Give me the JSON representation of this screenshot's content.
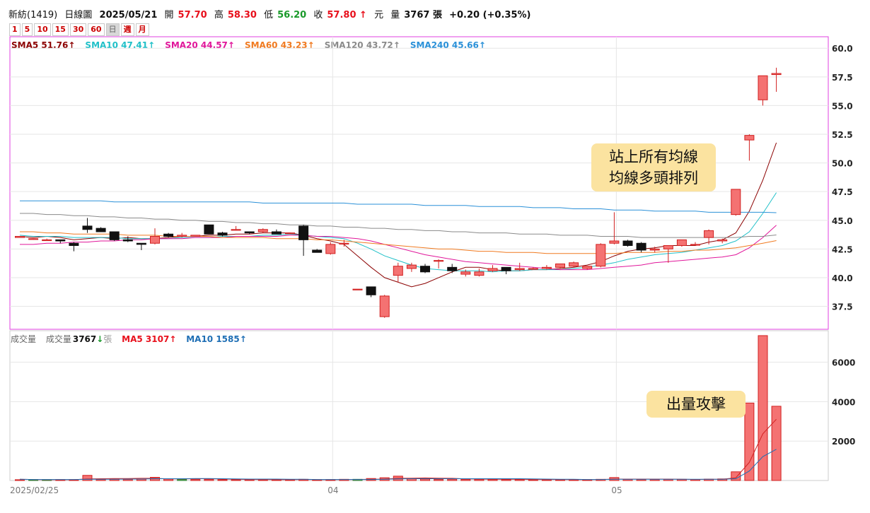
{
  "header": {
    "stock": "新紡(1419)",
    "chart_kind": "日線圖",
    "date": "2025/05/21",
    "open_label": "開",
    "open": "57.70",
    "high_label": "高",
    "high": "58.30",
    "low_label": "低",
    "low": "56.20",
    "close_label": "收",
    "close": "57.80 ↑",
    "currency": "元",
    "volume_label": "量",
    "volume": "3767 張",
    "change": "+0.20 (+0.35%)"
  },
  "periods": [
    "1",
    "5",
    "10",
    "15",
    "30",
    "60",
    "日",
    "週",
    "月"
  ],
  "active_period": "日",
  "ma_legend": [
    {
      "text": "SMA5 51.76↑",
      "color": "#8b0000"
    },
    {
      "text": "SMA10 47.41↑",
      "color": "#20c0c8"
    },
    {
      "text": "SMA20 44.57↑",
      "color": "#e0169a"
    },
    {
      "text": "SMA60 43.23↑",
      "color": "#f07a20"
    },
    {
      "text": "SMA120 43.72↑",
      "color": "#8a8a8a"
    },
    {
      "text": "SMA240 45.66↑",
      "color": "#2a90d8"
    }
  ],
  "volume_legend": {
    "title": "成交量",
    "label": "成交量",
    "value": "3767",
    "arrow": "↓",
    "unit": "張",
    "ma5": "MA5 3107↑",
    "ma10": "MA10 1585↑"
  },
  "annotations": {
    "ma_callout_line1": "站上所有均線",
    "ma_callout_line2": "均線多頭排列",
    "volume_callout": "出量攻擊"
  },
  "chart_data": {
    "type": "candlestick",
    "price_axis": {
      "ticks": [
        37.5,
        40.0,
        42.5,
        45.0,
        47.5,
        50.0,
        52.5,
        55.0,
        57.5,
        60.0
      ],
      "ylim": [
        35.5,
        61.0
      ]
    },
    "volume_axis": {
      "ticks": [
        2000,
        4000,
        6000
      ],
      "ylim": [
        0,
        7600
      ]
    },
    "x_labels": [
      "2025/02/25",
      "04",
      "05"
    ],
    "candles": [
      [
        43.5,
        43.6,
        43.5,
        43.6
      ],
      [
        43.4,
        43.4,
        43.3,
        43.4
      ],
      [
        43.3,
        43.4,
        43.2,
        43.3
      ],
      [
        43.3,
        43.3,
        43.0,
        43.2
      ],
      [
        43.0,
        43.1,
        42.3,
        42.8
      ],
      [
        44.5,
        45.2,
        43.9,
        44.2
      ],
      [
        44.3,
        44.4,
        44.0,
        44.0
      ],
      [
        44.0,
        44.0,
        43.2,
        43.3
      ],
      [
        43.3,
        43.6,
        43.1,
        43.2
      ],
      [
        43.0,
        43.0,
        42.4,
        42.9
      ],
      [
        43.0,
        44.3,
        42.9,
        43.6
      ],
      [
        43.8,
        43.9,
        43.5,
        43.6
      ],
      [
        43.6,
        43.9,
        43.5,
        43.7
      ],
      [
        43.6,
        43.7,
        43.6,
        43.7
      ],
      [
        44.6,
        44.6,
        43.8,
        43.8
      ],
      [
        43.9,
        44.0,
        43.6,
        43.7
      ],
      [
        44.2,
        44.5,
        44.1,
        44.2
      ],
      [
        44.0,
        44.0,
        43.8,
        43.9
      ],
      [
        44.0,
        44.3,
        43.9,
        44.2
      ],
      [
        44.0,
        44.2,
        43.8,
        43.8
      ],
      [
        43.9,
        43.9,
        43.9,
        43.9
      ],
      [
        44.5,
        44.6,
        41.9,
        43.3
      ],
      [
        42.4,
        42.5,
        42.2,
        42.2
      ],
      [
        42.1,
        43.1,
        42.0,
        42.9
      ],
      [
        43.0,
        43.3,
        42.7,
        43.0
      ],
      [
        39.0,
        39.0,
        39.0,
        39.0
      ],
      [
        39.2,
        39.2,
        38.3,
        38.5
      ],
      [
        36.6,
        38.5,
        36.5,
        38.4
      ],
      [
        40.2,
        41.3,
        39.6,
        41.0
      ],
      [
        40.8,
        41.3,
        40.5,
        41.1
      ],
      [
        41.0,
        41.2,
        40.4,
        40.5
      ],
      [
        41.5,
        41.6,
        40.8,
        41.5
      ],
      [
        40.9,
        41.2,
        40.4,
        40.6
      ],
      [
        40.3,
        40.7,
        40.1,
        40.5
      ],
      [
        40.2,
        40.8,
        40.1,
        40.5
      ],
      [
        40.6,
        41.1,
        40.5,
        40.8
      ],
      [
        40.9,
        40.9,
        40.3,
        40.6
      ],
      [
        40.7,
        41.3,
        40.6,
        40.8
      ],
      [
        40.8,
        40.9,
        40.7,
        40.8
      ],
      [
        40.8,
        41.1,
        40.7,
        40.9
      ],
      [
        40.9,
        41.2,
        40.8,
        41.2
      ],
      [
        41.0,
        41.4,
        40.9,
        41.3
      ],
      [
        40.8,
        41.0,
        40.7,
        41.0
      ],
      [
        41.0,
        43.0,
        40.9,
        42.9
      ],
      [
        43.0,
        45.7,
        42.9,
        43.2
      ],
      [
        43.2,
        43.3,
        42.7,
        42.8
      ],
      [
        43.0,
        43.1,
        42.2,
        42.4
      ],
      [
        42.4,
        42.7,
        42.2,
        42.5
      ],
      [
        42.5,
        42.8,
        41.3,
        42.8
      ],
      [
        42.8,
        43.3,
        42.7,
        43.3
      ],
      [
        42.9,
        43.1,
        42.8,
        42.9
      ],
      [
        43.5,
        44.2,
        42.9,
        44.1
      ],
      [
        43.2,
        43.4,
        43.0,
        43.3
      ],
      [
        45.5,
        47.7,
        45.4,
        47.7
      ],
      [
        52.0,
        52.5,
        50.2,
        52.4
      ],
      [
        55.5,
        57.6,
        55.0,
        57.6
      ],
      [
        57.7,
        58.3,
        56.2,
        57.8
      ]
    ],
    "volumes": [
      40,
      30,
      30,
      40,
      40,
      260,
      60,
      80,
      60,
      70,
      160,
      80,
      60,
      50,
      60,
      40,
      40,
      40,
      40,
      40,
      40,
      60,
      30,
      40,
      60,
      60,
      100,
      140,
      220,
      90,
      80,
      50,
      70,
      60,
      60,
      60,
      50,
      50,
      40,
      40,
      40,
      50,
      40,
      60,
      150,
      60,
      50,
      50,
      60,
      60,
      50,
      70,
      80,
      440,
      3930,
      7350,
      3767
    ],
    "volume_up": [
      1,
      0,
      0,
      1,
      1,
      1,
      1,
      1,
      1,
      1,
      1,
      1,
      0,
      1,
      1,
      1,
      1,
      1,
      1,
      1,
      1,
      1,
      1,
      1,
      1,
      0,
      1,
      1,
      1,
      1,
      1,
      1,
      1,
      1,
      1,
      1,
      1,
      1,
      1,
      1,
      1,
      1,
      1,
      1,
      1,
      1,
      1,
      1,
      1,
      1,
      1,
      1,
      1,
      1,
      1,
      1,
      1
    ],
    "ma_lines": {
      "SMA5": [
        43.6,
        43.5,
        43.6,
        43.5,
        43.3,
        43.4,
        43.5,
        43.4,
        43.5,
        43.4,
        43.4,
        43.5,
        43.6,
        43.6,
        43.7,
        43.7,
        43.8,
        43.8,
        43.9,
        43.9,
        43.9,
        43.7,
        43.4,
        43.2,
        42.9,
        41.9,
        40.9,
        40.0,
        39.6,
        39.2,
        39.5,
        40.0,
        40.5,
        40.9,
        40.9,
        40.7,
        40.6,
        40.6,
        40.7,
        40.7,
        40.8,
        40.9,
        41.1,
        41.4,
        41.9,
        42.3,
        42.5,
        42.6,
        42.8,
        42.8,
        42.8,
        43.1,
        43.3,
        43.9,
        45.8,
        48.5,
        51.76
      ],
      "SMA10": [
        43.7,
        43.6,
        43.6,
        43.6,
        43.5,
        43.5,
        43.5,
        43.5,
        43.4,
        43.4,
        43.4,
        43.4,
        43.5,
        43.5,
        43.5,
        43.6,
        43.6,
        43.6,
        43.7,
        43.7,
        43.8,
        43.7,
        43.6,
        43.5,
        43.4,
        43.0,
        42.5,
        41.9,
        41.5,
        41.1,
        40.8,
        40.7,
        40.6,
        40.6,
        40.6,
        40.5,
        40.6,
        40.6,
        40.7,
        40.7,
        40.7,
        40.8,
        40.9,
        41.1,
        41.3,
        41.6,
        41.8,
        42.0,
        42.1,
        42.2,
        42.4,
        42.6,
        42.8,
        43.2,
        44.0,
        45.6,
        47.41
      ],
      "SMA20": [
        42.9,
        42.9,
        43.0,
        43.0,
        43.1,
        43.1,
        43.2,
        43.2,
        43.3,
        43.3,
        43.4,
        43.4,
        43.4,
        43.5,
        43.5,
        43.5,
        43.6,
        43.6,
        43.6,
        43.6,
        43.7,
        43.7,
        43.6,
        43.6,
        43.5,
        43.4,
        43.2,
        42.9,
        42.6,
        42.3,
        42.0,
        41.8,
        41.6,
        41.4,
        41.3,
        41.2,
        41.1,
        41.0,
        40.9,
        40.8,
        40.7,
        40.7,
        40.7,
        40.8,
        40.9,
        41.0,
        41.1,
        41.3,
        41.4,
        41.5,
        41.6,
        41.7,
        41.8,
        42.0,
        42.6,
        43.5,
        44.57
      ],
      "SMA60": [
        44.0,
        44.0,
        43.9,
        43.9,
        43.8,
        43.8,
        43.8,
        43.8,
        43.7,
        43.7,
        43.7,
        43.6,
        43.6,
        43.6,
        43.6,
        43.5,
        43.5,
        43.5,
        43.5,
        43.4,
        43.4,
        43.4,
        43.3,
        43.3,
        43.2,
        43.1,
        43.0,
        42.9,
        42.8,
        42.7,
        42.6,
        42.5,
        42.5,
        42.4,
        42.3,
        42.3,
        42.2,
        42.2,
        42.2,
        42.1,
        42.1,
        42.1,
        42.1,
        42.1,
        42.1,
        42.2,
        42.2,
        42.2,
        42.3,
        42.3,
        42.4,
        42.4,
        42.5,
        42.6,
        42.8,
        43.0,
        43.23
      ],
      "SMA120": [
        45.6,
        45.6,
        45.5,
        45.5,
        45.4,
        45.4,
        45.3,
        45.3,
        45.2,
        45.2,
        45.1,
        45.1,
        45.0,
        45.0,
        44.9,
        44.9,
        44.8,
        44.8,
        44.7,
        44.7,
        44.6,
        44.6,
        44.5,
        44.5,
        44.4,
        44.4,
        44.3,
        44.3,
        44.2,
        44.2,
        44.1,
        44.1,
        44.0,
        44.0,
        43.9,
        43.9,
        43.9,
        43.8,
        43.8,
        43.8,
        43.7,
        43.7,
        43.7,
        43.6,
        43.6,
        43.6,
        43.5,
        43.5,
        43.5,
        43.5,
        43.5,
        43.5,
        43.5,
        43.5,
        43.6,
        43.6,
        43.72
      ],
      "SMA240": [
        46.7,
        46.7,
        46.7,
        46.7,
        46.7,
        46.7,
        46.7,
        46.6,
        46.6,
        46.6,
        46.6,
        46.6,
        46.6,
        46.6,
        46.6,
        46.6,
        46.6,
        46.6,
        46.5,
        46.5,
        46.5,
        46.5,
        46.5,
        46.5,
        46.5,
        46.4,
        46.4,
        46.4,
        46.4,
        46.4,
        46.3,
        46.3,
        46.3,
        46.3,
        46.2,
        46.2,
        46.2,
        46.2,
        46.1,
        46.1,
        46.1,
        46.0,
        46.0,
        46.0,
        45.9,
        45.9,
        45.9,
        45.8,
        45.8,
        45.8,
        45.8,
        45.7,
        45.7,
        45.7,
        45.7,
        45.7,
        45.66
      ]
    },
    "vol_ma": {
      "MA5": [
        60,
        50,
        40,
        40,
        40,
        80,
        90,
        100,
        100,
        110,
        110,
        80,
        80,
        90,
        90,
        70,
        60,
        50,
        50,
        40,
        40,
        50,
        40,
        40,
        50,
        50,
        60,
        70,
        110,
        120,
        130,
        120,
        110,
        80,
        70,
        60,
        60,
        60,
        50,
        50,
        50,
        40,
        40,
        50,
        70,
        70,
        70,
        70,
        70,
        60,
        50,
        60,
        60,
        140,
        920,
        2370,
        3107
      ],
      "MA10": [
        60,
        50,
        50,
        50,
        50,
        60,
        60,
        60,
        70,
        70,
        90,
        90,
        90,
        100,
        100,
        90,
        80,
        70,
        70,
        70,
        60,
        60,
        50,
        50,
        50,
        50,
        50,
        60,
        80,
        90,
        90,
        90,
        90,
        90,
        90,
        90,
        90,
        90,
        80,
        70,
        60,
        60,
        50,
        50,
        60,
        60,
        60,
        60,
        60,
        60,
        60,
        60,
        60,
        90,
        480,
        1210,
        1585
      ]
    }
  }
}
